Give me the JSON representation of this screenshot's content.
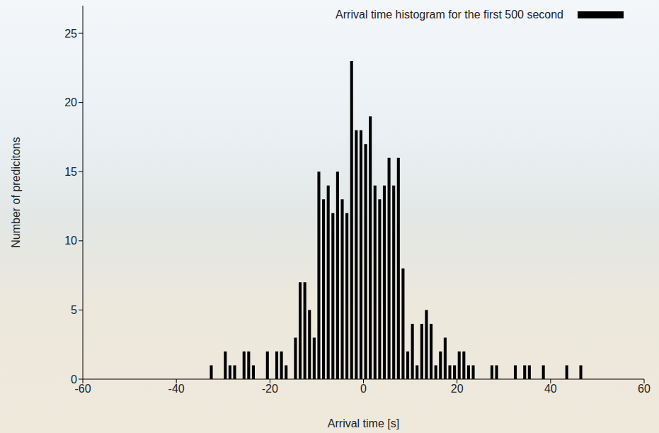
{
  "chart_data": {
    "type": "histogram",
    "x_label": "Arrival time [s]",
    "y_label": "Number of predicitons",
    "legend": "upper right",
    "bins": [
      -33,
      -32,
      -31,
      -30,
      -29,
      -28,
      -27,
      -26,
      -25,
      -24,
      -23,
      -22,
      -21,
      -20,
      -19,
      -18,
      -17,
      -16,
      -15,
      -14,
      -13,
      -12,
      -11,
      -10,
      -9,
      -8,
      -7,
      -6,
      -5,
      -4,
      -3,
      -2,
      -1,
      0,
      1,
      2,
      3,
      4,
      5,
      6,
      7,
      8,
      9,
      10,
      11,
      12,
      13,
      14,
      15,
      16,
      17,
      18,
      19,
      20,
      21,
      22,
      23,
      24,
      25,
      26,
      27,
      28,
      29,
      30,
      31,
      32,
      33,
      34,
      35,
      36,
      37,
      38,
      39,
      40,
      41,
      42,
      43,
      44,
      45,
      46,
      47
    ],
    "series": [
      {
        "name": "Arrival time histogram for the first 500 second",
        "color": "#000000",
        "values": [
          1,
          0,
          0,
          2,
          1,
          1,
          0,
          2,
          2,
          1,
          0,
          0,
          2,
          0,
          2,
          2,
          1,
          0,
          3,
          7,
          7,
          5,
          3,
          15,
          13,
          14,
          12,
          15,
          13,
          12,
          23,
          18,
          18,
          17,
          19,
          14,
          13,
          14,
          16,
          14,
          16,
          8,
          2,
          4,
          1,
          4,
          5,
          4,
          1,
          2,
          3,
          1,
          1,
          2,
          2,
          1,
          1,
          0,
          0,
          0,
          1,
          1,
          0,
          0,
          0,
          1,
          0,
          1,
          1,
          0,
          0,
          1,
          0,
          0,
          0,
          0,
          1,
          0,
          0,
          1
        ]
      }
    ],
    "xlim": [
      -60,
      60
    ],
    "xticks": [
      -60,
      -40,
      -20,
      0,
      20,
      40,
      60
    ],
    "ylim": [
      0,
      27
    ],
    "yticks": [
      0,
      5,
      10,
      15,
      20,
      25
    ],
    "grid": false
  }
}
